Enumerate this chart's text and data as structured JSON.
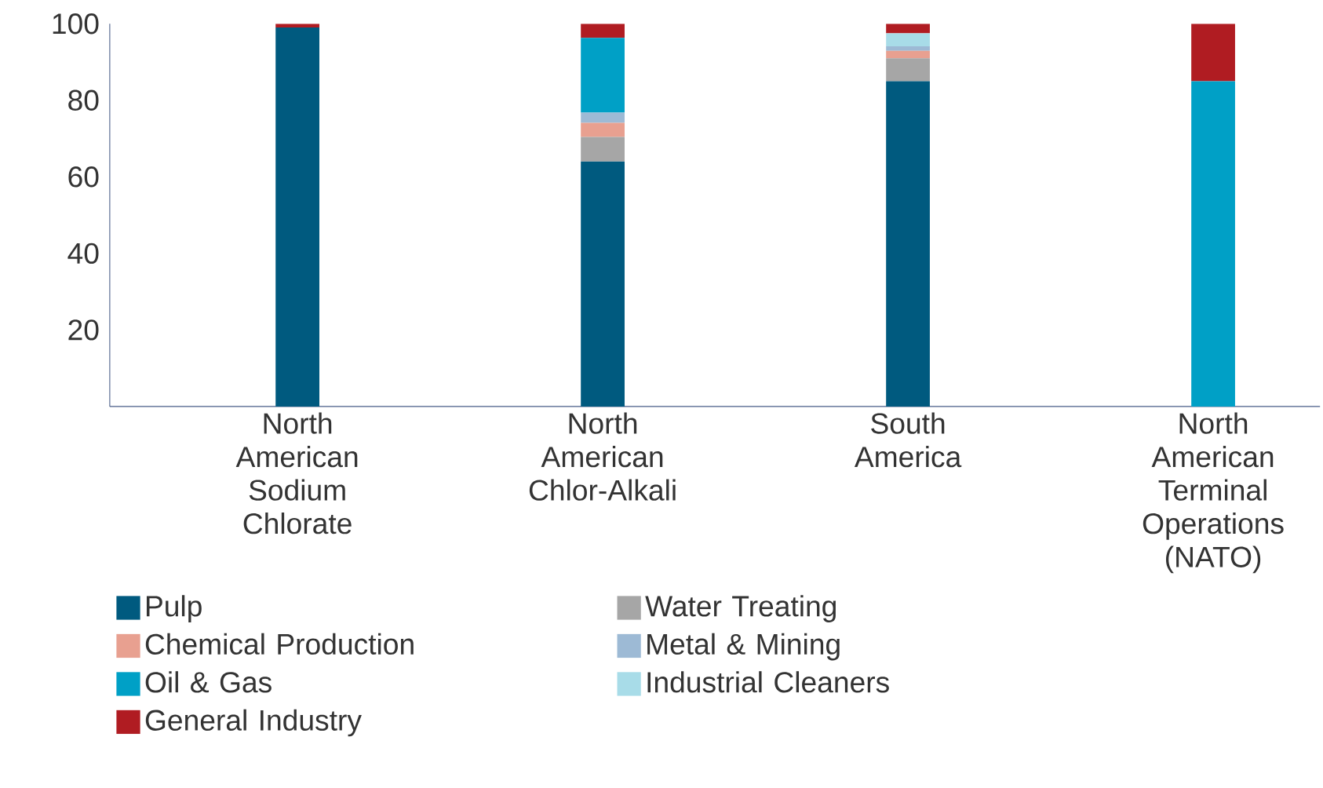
{
  "chart_data": {
    "type": "bar",
    "stacked": true,
    "categories": [
      "North American Sodium Chlorate",
      "North American Chlor-Alkali",
      "South America",
      "North American Terminal Operations (NATO)"
    ],
    "series": [
      {
        "name": "Pulp",
        "color": "#005a7f",
        "values": [
          99,
          64,
          85,
          null
        ]
      },
      {
        "name": "Water Treating",
        "color": "#a6a6a6",
        "values": [
          null,
          6.4,
          6,
          null
        ]
      },
      {
        "name": "Chemical Production",
        "color": "#e8a090",
        "values": [
          null,
          3.7,
          1.9,
          null
        ]
      },
      {
        "name": "Metal & Mining",
        "color": "#9dbad5",
        "values": [
          null,
          2.7,
          1.2,
          null
        ]
      },
      {
        "name": "Oil & Gas",
        "color": "#00a0c6",
        "values": [
          null,
          19.5,
          null,
          85
        ]
      },
      {
        "name": "Industrial Cleaners",
        "color": "#a8dce8",
        "values": [
          null,
          null,
          3.4,
          null
        ]
      },
      {
        "name": "General Industry",
        "color": "#b01c22",
        "values": [
          1,
          3.7,
          2.5,
          15
        ]
      }
    ],
    "ylim": [
      0,
      100
    ],
    "yticks": [
      20,
      40,
      60,
      80,
      100
    ],
    "grid": false,
    "legend": "bottom"
  }
}
